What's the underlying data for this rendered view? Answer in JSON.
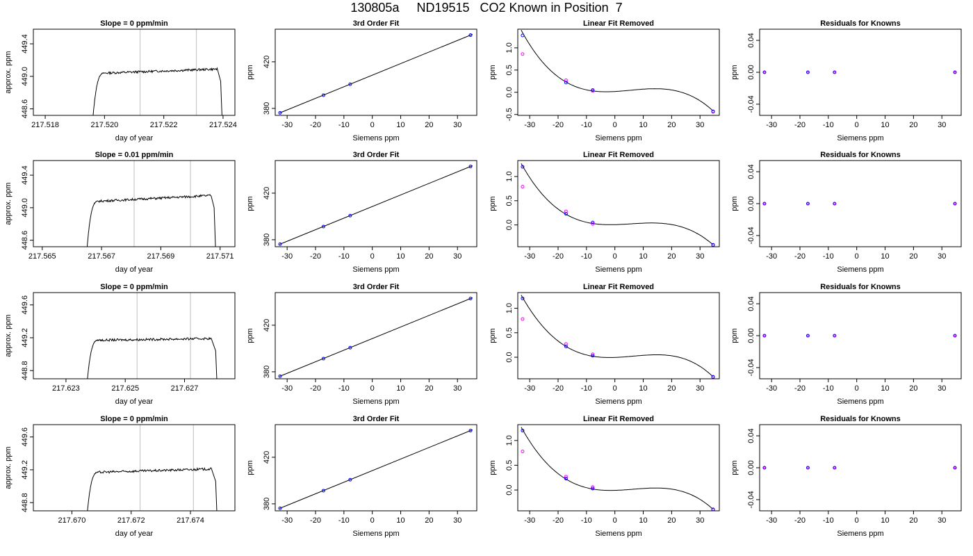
{
  "page_title": "130805a     ND19515   CO2 Known in Position  7",
  "colors": {
    "trace": "#000000",
    "cursor_lines": "#c8c8c8",
    "measured_points": "#0000ff",
    "reference_points": "#ff00ff",
    "highlight_point": "#ff0000"
  },
  "chart_data": [
    {
      "type": "line",
      "panel": "time-series",
      "row": 1,
      "title": "Slope =  0  ppm/min",
      "xlabel": "day of year",
      "ylabel": "approx. ppm",
      "xlim": [
        217.5176,
        217.5244
      ],
      "ylim": [
        448.52,
        449.58
      ],
      "xticks": [
        217.518,
        217.52,
        217.522,
        217.524
      ],
      "xtick_labels": [
        "217.518",
        "217.520",
        "217.522",
        "217.524"
      ],
      "yticks": [
        448.6,
        449.0,
        449.4
      ],
      "ytick_labels": [
        "448.6",
        "449.0",
        "449.4"
      ],
      "vlines": [
        217.5212,
        217.5231
      ],
      "trace": {
        "t_start": 217.5196,
        "t_plateau": 217.52,
        "t_end": 217.5238,
        "t_drop": 217.52392,
        "level_start": 449.04,
        "level_end": 449.09,
        "low": 448.45
      }
    },
    {
      "type": "line",
      "panel": "fit",
      "row": 1,
      "title": "3rd Order Fit",
      "xlabel": "Siemens ppm",
      "ylabel": "ppm",
      "xlim": [
        -34.2,
        36.8
      ],
      "ylim": [
        374.0,
        448.0
      ],
      "xticks": [
        -30,
        -20,
        -10,
        0,
        10,
        20,
        30
      ],
      "xtick_labels": [
        "-30",
        "-20",
        "-10",
        "0",
        "10",
        "20",
        "30"
      ],
      "yticks": [
        380,
        420
      ],
      "ytick_labels": [
        "380",
        "420"
      ],
      "x": [
        -32.5,
        -17.2,
        -7.8,
        34.6
      ],
      "y": [
        376.2,
        391.3,
        400.7,
        442.9
      ]
    },
    {
      "type": "scatter",
      "panel": "linear-fit-removed",
      "row": 1,
      "title": "Linear Fit Removed",
      "xlabel": "Siemens ppm",
      "ylabel": "ppm",
      "xlim": [
        -34.2,
        36.8
      ],
      "ylim": [
        -0.52,
        1.42
      ],
      "xticks": [
        -30,
        -20,
        -10,
        0,
        10,
        20,
        30
      ],
      "xtick_labels": [
        "-30",
        "-20",
        "-10",
        "0",
        "10",
        "20",
        "30"
      ],
      "yticks": [
        -0.5,
        0.0,
        0.5,
        1.0
      ],
      "ytick_labels": [
        "-0.5",
        "0.0",
        "0.5",
        "1.0"
      ],
      "curve_points": [
        [
          -33,
          1.4
        ],
        [
          -17.2,
          0.23
        ],
        [
          -7.8,
          0.03
        ],
        [
          14,
          0.08
        ],
        [
          34.6,
          -0.42
        ]
      ],
      "points_blue": [
        [
          -32.5,
          1.28
        ],
        [
          -17.2,
          0.22
        ],
        [
          -7.8,
          0.05
        ],
        [
          34.6,
          -0.43
        ]
      ],
      "points_magenta": [
        [
          -32.5,
          0.86
        ],
        [
          -17.2,
          0.27
        ],
        [
          -7.8,
          0.03
        ],
        [
          34.6,
          -0.44
        ]
      ]
    },
    {
      "type": "scatter",
      "panel": "residuals",
      "row": 1,
      "title": "Residuals for Knowns",
      "xlabel": "Siemens ppm",
      "ylabel": "ppm",
      "xlim": [
        -34.2,
        36.8
      ],
      "ylim": [
        -0.054,
        0.054
      ],
      "xticks": [
        -30,
        -20,
        -10,
        0,
        10,
        20,
        30
      ],
      "xtick_labels": [
        "-30",
        "-20",
        "-10",
        "0",
        "10",
        "20",
        "30"
      ],
      "yticks": [
        -0.04,
        0.0,
        0.04
      ],
      "ytick_labels": [
        "-0.04",
        "0.00",
        "0.04"
      ],
      "x": [
        -32.5,
        -17.2,
        -7.8,
        34.6
      ],
      "y": [
        0,
        0,
        0,
        0
      ]
    },
    {
      "type": "line",
      "panel": "time-series",
      "row": 2,
      "title": "Slope =  0.01  ppm/min",
      "xlabel": "day of year",
      "ylabel": "approx. ppm",
      "xlim": [
        217.5647,
        217.5715
      ],
      "ylim": [
        448.52,
        449.58
      ],
      "xticks": [
        217.565,
        217.567,
        217.569,
        217.571
      ],
      "xtick_labels": [
        "217.565",
        "217.567",
        "217.569",
        "217.571"
      ],
      "yticks": [
        448.6,
        449.0,
        449.4
      ],
      "ytick_labels": [
        "448.6",
        "449.0",
        "449.4"
      ],
      "vlines": [
        217.5681,
        217.57
      ],
      "trace": {
        "t_start": 217.5665,
        "t_plateau": 217.5669,
        "t_end": 217.5707,
        "t_drop": 217.5708,
        "level_start": 449.08,
        "level_end": 449.15,
        "low": 448.45
      }
    },
    {
      "type": "line",
      "panel": "fit",
      "row": 2,
      "title": "3rd Order Fit",
      "xlabel": "Siemens ppm",
      "ylabel": "ppm",
      "xlim": [
        -34.2,
        36.8
      ],
      "ylim": [
        374.0,
        448.0
      ],
      "xticks": [
        -30,
        -20,
        -10,
        0,
        10,
        20,
        30
      ],
      "xtick_labels": [
        "-30",
        "-20",
        "-10",
        "0",
        "10",
        "20",
        "30"
      ],
      "yticks": [
        380,
        420
      ],
      "ytick_labels": [
        "380",
        "420"
      ],
      "x": [
        -32.5,
        -17.2,
        -7.8,
        34.6
      ],
      "y": [
        376.2,
        391.3,
        400.7,
        442.9
      ]
    },
    {
      "type": "scatter",
      "panel": "linear-fit-removed",
      "row": 2,
      "title": "Linear Fit Removed",
      "xlabel": "Siemens ppm",
      "ylabel": "ppm",
      "xlim": [
        -34.2,
        36.8
      ],
      "ylim": [
        -0.45,
        1.33
      ],
      "xticks": [
        -30,
        -20,
        -10,
        0,
        10,
        20,
        30
      ],
      "xtick_labels": [
        "-30",
        "-20",
        "-10",
        "0",
        "10",
        "20",
        "30"
      ],
      "yticks": [
        0.0,
        0.5,
        1.0
      ],
      "ytick_labels": [
        "0.0",
        "0.5",
        "1.0"
      ],
      "curve_points": [
        [
          -33,
          1.27
        ],
        [
          -17.2,
          0.22
        ],
        [
          -7.8,
          0.03
        ],
        [
          14,
          0.04
        ],
        [
          34.6,
          -0.41
        ]
      ],
      "points_blue": [
        [
          -32.5,
          1.2
        ],
        [
          -17.2,
          0.23
        ],
        [
          -7.8,
          0.05
        ],
        [
          34.6,
          -0.41
        ]
      ],
      "points_magenta": [
        [
          -32.5,
          0.79
        ],
        [
          -17.2,
          0.28
        ],
        [
          -7.8,
          0.02
        ],
        [
          34.6,
          -0.42
        ]
      ]
    },
    {
      "type": "scatter",
      "panel": "residuals",
      "row": 2,
      "title": "Residuals for Knowns",
      "xlabel": "Siemens ppm",
      "ylabel": "ppm",
      "xlim": [
        -34.2,
        36.8
      ],
      "ylim": [
        -0.054,
        0.054
      ],
      "xticks": [
        -30,
        -20,
        -10,
        0,
        10,
        20,
        30
      ],
      "xtick_labels": [
        "-30",
        "-20",
        "-10",
        "0",
        "10",
        "20",
        "30"
      ],
      "yticks": [
        -0.04,
        0.0,
        0.04
      ],
      "ytick_labels": [
        "-0.04",
        "0.00",
        "0.04"
      ],
      "x": [
        -32.5,
        -17.2,
        -7.8,
        34.6
      ],
      "y": [
        0,
        0,
        0,
        0
      ]
    },
    {
      "type": "line",
      "panel": "time-series",
      "row": 3,
      "title": "Slope =  0  ppm/min",
      "xlabel": "day of year",
      "ylabel": "approx. ppm",
      "xlim": [
        217.6219,
        217.6287
      ],
      "ylim": [
        448.7,
        449.75
      ],
      "xticks": [
        217.623,
        217.625,
        217.627
      ],
      "xtick_labels": [
        "217.623",
        "217.625",
        "217.627"
      ],
      "yticks": [
        448.8,
        449.2,
        449.6
      ],
      "ytick_labels": [
        "448.8",
        "449.2",
        "449.6"
      ],
      "vlines": [
        217.6254,
        217.6272
      ],
      "trace": {
        "t_start": 217.6237,
        "t_plateau": 217.6241,
        "t_end": 217.6279,
        "t_drop": 217.62805,
        "level_start": 449.17,
        "level_end": 449.19,
        "low": 448.6
      }
    },
    {
      "type": "line",
      "panel": "fit",
      "row": 3,
      "title": "3rd Order Fit",
      "xlabel": "Siemens ppm",
      "ylabel": "ppm",
      "xlim": [
        -34.2,
        36.8
      ],
      "ylim": [
        374.0,
        448.0
      ],
      "xticks": [
        -30,
        -20,
        -10,
        0,
        10,
        20,
        30
      ],
      "xtick_labels": [
        "-30",
        "-20",
        "-10",
        "0",
        "10",
        "20",
        "30"
      ],
      "yticks": [
        380,
        420
      ],
      "ytick_labels": [
        "380",
        "420"
      ],
      "x": [
        -32.5,
        -17.2,
        -7.8,
        34.6
      ],
      "y": [
        376.2,
        391.3,
        400.7,
        442.9
      ]
    },
    {
      "type": "scatter",
      "panel": "linear-fit-removed",
      "row": 3,
      "title": "Linear Fit Removed",
      "xlabel": "Siemens ppm",
      "ylabel": "ppm",
      "xlim": [
        -34.2,
        36.8
      ],
      "ylim": [
        -0.44,
        1.32
      ],
      "xticks": [
        -30,
        -20,
        -10,
        0,
        10,
        20,
        30
      ],
      "xtick_labels": [
        "-30",
        "-20",
        "-10",
        "0",
        "10",
        "20",
        "30"
      ],
      "yticks": [
        0.0,
        0.5,
        1.0
      ],
      "ytick_labels": [
        "0.0",
        "0.5",
        "1.0"
      ],
      "curve_points": [
        [
          -33,
          1.27
        ],
        [
          -17.2,
          0.22
        ],
        [
          -7.8,
          0.02
        ],
        [
          14,
          0.05
        ],
        [
          34.6,
          -0.4
        ]
      ],
      "points_blue": [
        [
          -32.5,
          1.2
        ],
        [
          -17.2,
          0.22
        ],
        [
          -7.8,
          0.03
        ],
        [
          34.6,
          -0.4
        ]
      ],
      "points_magenta": [
        [
          -32.5,
          0.78
        ],
        [
          -17.2,
          0.27
        ],
        [
          -7.8,
          0.06
        ],
        [
          34.6,
          -0.41
        ]
      ]
    },
    {
      "type": "scatter",
      "panel": "residuals",
      "row": 3,
      "title": "Residuals for Knowns",
      "xlabel": "Siemens ppm",
      "ylabel": "ppm",
      "xlim": [
        -34.2,
        36.8
      ],
      "ylim": [
        -0.054,
        0.054
      ],
      "xticks": [
        -30,
        -20,
        -10,
        0,
        10,
        20,
        30
      ],
      "xtick_labels": [
        "-30",
        "-20",
        "-10",
        "0",
        "10",
        "20",
        "30"
      ],
      "yticks": [
        -0.04,
        0.0,
        0.04
      ],
      "ytick_labels": [
        "-0.04",
        "0.00",
        "0.04"
      ],
      "x": [
        -32.5,
        -17.2,
        -7.8,
        34.6
      ],
      "y": [
        0,
        0,
        0,
        0
      ]
    },
    {
      "type": "line",
      "panel": "time-series",
      "row": 4,
      "title": "Slope =  0  ppm/min",
      "xlabel": "day of year",
      "ylabel": "approx. ppm",
      "xlim": [
        217.6687,
        217.6755
      ],
      "ylim": [
        448.7,
        449.75
      ],
      "xticks": [
        217.67,
        217.672,
        217.674
      ],
      "xtick_labels": [
        "217.670",
        "217.672",
        "217.674"
      ],
      "yticks": [
        448.8,
        449.2,
        449.6
      ],
      "ytick_labels": [
        "448.8",
        "449.2",
        "449.6"
      ],
      "vlines": [
        217.6723,
        217.6741
      ],
      "trace": {
        "t_start": 217.6705,
        "t_plateau": 217.6709,
        "t_end": 217.6747,
        "t_drop": 217.67485,
        "level_start": 449.17,
        "level_end": 449.21,
        "low": 448.6
      }
    },
    {
      "type": "line",
      "panel": "fit",
      "row": 4,
      "title": "3rd Order Fit",
      "xlabel": "Siemens ppm",
      "ylabel": "ppm",
      "xlim": [
        -34.2,
        36.8
      ],
      "ylim": [
        374.0,
        448.0
      ],
      "xticks": [
        -30,
        -20,
        -10,
        0,
        10,
        20,
        30
      ],
      "xtick_labels": [
        "-30",
        "-20",
        "-10",
        "0",
        "10",
        "20",
        "30"
      ],
      "yticks": [
        380,
        420
      ],
      "ytick_labels": [
        "380",
        "420"
      ],
      "x": [
        -32.5,
        -17.2,
        -7.8,
        34.6
      ],
      "y": [
        376.2,
        391.3,
        400.7,
        442.9
      ]
    },
    {
      "type": "scatter",
      "panel": "linear-fit-removed",
      "row": 4,
      "title": "Linear Fit Removed",
      "xlabel": "Siemens ppm",
      "ylabel": "ppm",
      "xlim": [
        -34.2,
        36.8
      ],
      "ylim": [
        -0.42,
        1.32
      ],
      "xticks": [
        -30,
        -20,
        -10,
        0,
        10,
        20,
        30
      ],
      "xtick_labels": [
        "-30",
        "-20",
        "-10",
        "0",
        "10",
        "20",
        "30"
      ],
      "yticks": [
        0.0,
        0.5,
        1.0
      ],
      "ytick_labels": [
        "0.0",
        "0.5",
        "1.0"
      ],
      "curve_points": [
        [
          -33,
          1.27
        ],
        [
          -17.2,
          0.22
        ],
        [
          -7.8,
          0.02
        ],
        [
          15,
          0.04
        ],
        [
          34.6,
          -0.39
        ]
      ],
      "points_blue": [
        [
          -32.5,
          1.2
        ],
        [
          -17.2,
          0.23
        ],
        [
          -7.8,
          0.03
        ],
        [
          34.6,
          -0.39
        ]
      ],
      "points_magenta": [
        [
          -32.5,
          0.78
        ],
        [
          -17.2,
          0.27
        ],
        [
          -7.8,
          0.06
        ],
        [
          34.6,
          -0.4
        ]
      ]
    },
    {
      "type": "scatter",
      "panel": "residuals",
      "row": 4,
      "title": "Residuals for Knowns",
      "xlabel": "Siemens ppm",
      "ylabel": "ppm",
      "xlim": [
        -34.2,
        36.8
      ],
      "ylim": [
        -0.054,
        0.054
      ],
      "xticks": [
        -30,
        -20,
        -10,
        0,
        10,
        20,
        30
      ],
      "xtick_labels": [
        "-30",
        "-20",
        "-10",
        "0",
        "10",
        "20",
        "30"
      ],
      "yticks": [
        -0.04,
        0.0,
        0.04
      ],
      "ytick_labels": [
        "-0.04",
        "0.00",
        "0.04"
      ],
      "x": [
        -32.5,
        -17.2,
        -7.8,
        34.6
      ],
      "y": [
        0,
        0,
        0,
        0
      ]
    }
  ]
}
